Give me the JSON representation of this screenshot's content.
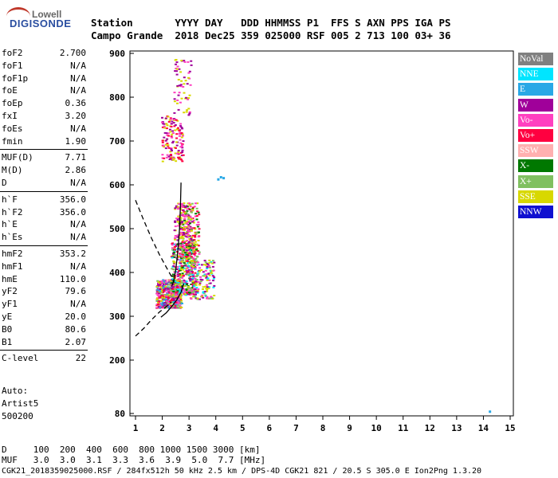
{
  "logo": {
    "top": "Lowell",
    "main": "DIGISONDE"
  },
  "header": {
    "row1": "Station       YYYY DAY   DDD HHMMSS P1  FFS S AXN PPS IGA PS",
    "row2": "Campo Grande  2018 Dec25 359 025000 RSF 005 2 713 100 03+ 36"
  },
  "params": [
    {
      "name": "foF2",
      "value": "2.700"
    },
    {
      "name": "foF1",
      "value": "N/A"
    },
    {
      "name": "foF1p",
      "value": "N/A"
    },
    {
      "name": "foE",
      "value": "N/A"
    },
    {
      "name": "foEp",
      "value": "0.36"
    },
    {
      "name": "fxI",
      "value": "3.20"
    },
    {
      "name": "foEs",
      "value": "N/A"
    },
    {
      "name": "fmin",
      "value": "1.90"
    },
    {
      "name": "MUF(D)",
      "value": "7.71"
    },
    {
      "name": "M(D)",
      "value": "2.86"
    },
    {
      "name": "D",
      "value": "N/A"
    },
    {
      "name": "h`F",
      "value": "356.0"
    },
    {
      "name": "h`F2",
      "value": "356.0"
    },
    {
      "name": "h`E",
      "value": "N/A"
    },
    {
      "name": "h`Es",
      "value": "N/A"
    },
    {
      "name": "hmF2",
      "value": "353.2"
    },
    {
      "name": "hmF1",
      "value": "N/A"
    },
    {
      "name": "hmE",
      "value": "110.0"
    },
    {
      "name": "yF2",
      "value": "79.6"
    },
    {
      "name": "yF1",
      "value": "N/A"
    },
    {
      "name": "yE",
      "value": "20.0"
    },
    {
      "name": "B0",
      "value": "80.6"
    },
    {
      "name": "B1",
      "value": "2.07"
    },
    {
      "name": "C-level",
      "value": "22"
    }
  ],
  "auto": {
    "line1": "Auto:",
    "line2": "Artist5",
    "line3": "500200"
  },
  "chart_data": {
    "type": "scatter",
    "xlim": [
      1,
      15
    ],
    "ylim": [
      80,
      900
    ],
    "x_ticks": [
      1,
      2,
      3,
      4,
      5,
      6,
      7,
      8,
      9,
      10,
      11,
      12,
      13,
      14,
      15
    ],
    "y_ticks": [
      80,
      200,
      300,
      400,
      500,
      600,
      700,
      800,
      900
    ],
    "grid": false,
    "legend_position": "right",
    "legend": [
      {
        "name": "NoVal",
        "color": "#808080"
      },
      {
        "name": "NNE",
        "color": "#00e5ff"
      },
      {
        "name": "E",
        "color": "#29a8e6"
      },
      {
        "name": "W",
        "color": "#a0009a"
      },
      {
        "name": "Vo-",
        "color": "#ff40c0"
      },
      {
        "name": "Vo+",
        "color": "#ff0040"
      },
      {
        "name": "SSW",
        "color": "#ffb0b0"
      },
      {
        "name": "X-",
        "color": "#007800"
      },
      {
        "name": "X+",
        "color": "#80c060"
      },
      {
        "name": "SSE",
        "color": "#d8d800"
      },
      {
        "name": "NNW",
        "color": "#1010d0"
      }
    ],
    "clusters": [
      {
        "xmin": 1.75,
        "xmax": 2.7,
        "ymin": 320,
        "ymax": 385,
        "count": 520,
        "colors": [
          "#a0009a",
          "#ff40c0",
          "#d8d800",
          "#80c060",
          "#29a8e6",
          "#ff0040"
        ]
      },
      {
        "xmin": 2.3,
        "xmax": 3.2,
        "ymin": 350,
        "ymax": 470,
        "count": 420,
        "colors": [
          "#ff40c0",
          "#d8d800",
          "#80c060",
          "#a0009a",
          "#007800",
          "#ff0040",
          "#00e5ff"
        ]
      },
      {
        "xmin": 2.6,
        "xmax": 3.35,
        "ymin": 420,
        "ymax": 560,
        "count": 220,
        "colors": [
          "#d8d800",
          "#80c060",
          "#ff40c0",
          "#007800",
          "#ff0040"
        ]
      },
      {
        "xmin": 2.4,
        "xmax": 3.1,
        "ymin": 470,
        "ymax": 560,
        "count": 120,
        "colors": [
          "#ff40c0",
          "#a0009a",
          "#d8d800"
        ]
      },
      {
        "xmin": 3.0,
        "xmax": 3.9,
        "ymin": 340,
        "ymax": 430,
        "count": 160,
        "colors": [
          "#d8d800",
          "#80c060",
          "#ff40c0",
          "#00e5ff",
          "#a0009a"
        ]
      },
      {
        "xmin": 1.95,
        "xmax": 2.75,
        "ymin": 655,
        "ymax": 760,
        "count": 140,
        "colors": [
          "#ff40c0",
          "#d8d800",
          "#a0009a",
          "#ff0040"
        ]
      },
      {
        "xmin": 2.4,
        "xmax": 3.05,
        "ymin": 760,
        "ymax": 890,
        "count": 60,
        "colors": [
          "#ff40c0",
          "#d8d800",
          "#a0009a"
        ]
      }
    ],
    "isolated_points": [
      {
        "x": 4.05,
        "y": 615,
        "color": "#29a8e6"
      },
      {
        "x": 4.15,
        "y": 620,
        "color": "#29a8e6"
      },
      {
        "x": 4.25,
        "y": 618,
        "color": "#29a8e6"
      },
      {
        "x": 14.2,
        "y": 85,
        "color": "#29a8e6"
      }
    ],
    "profile_curve": [
      [
        2.7,
        605
      ],
      [
        2.68,
        555
      ],
      [
        2.65,
        505
      ],
      [
        2.6,
        462
      ],
      [
        2.55,
        430
      ],
      [
        2.5,
        405
      ],
      [
        2.45,
        388
      ],
      [
        2.4,
        376
      ],
      [
        2.35,
        368
      ]
    ],
    "trace_curve": [
      [
        1.95,
        298
      ],
      [
        2.15,
        308
      ],
      [
        2.35,
        322
      ],
      [
        2.55,
        338
      ],
      [
        2.7,
        355
      ],
      [
        2.8,
        375
      ]
    ],
    "dashed_upper": [
      [
        1,
        565
      ],
      [
        1.3,
        520
      ],
      [
        1.6,
        478
      ],
      [
        1.9,
        440
      ],
      [
        2.15,
        412
      ],
      [
        2.35,
        390
      ]
    ],
    "dashed_lower": [
      [
        1,
        255
      ],
      [
        1.3,
        272
      ],
      [
        1.6,
        292
      ],
      [
        1.9,
        310
      ],
      [
        2.15,
        322
      ],
      [
        2.35,
        333
      ]
    ]
  },
  "footer": {
    "line1": "D     100  200  400  600  800 1000 1500 3000 [km]",
    "line2": "MUF   3.0  3.0  3.1  3.3  3.6  3.9  5.0  7.7 [MHz]",
    "line3": "CGK21_2018359025000.RSF / 284fx512h 50 kHz 2.5 km / DPS-4D CGK21 821 / 20.5 S 305.0 E Ion2Png 1.3.20"
  }
}
